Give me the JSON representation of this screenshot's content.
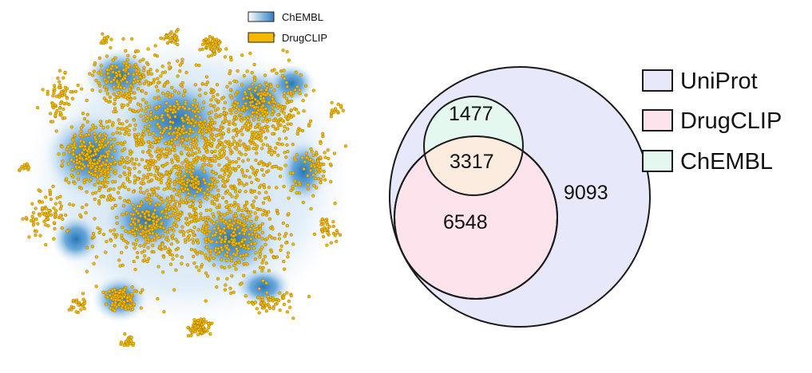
{
  "tsne": {
    "legend": [
      {
        "label": "ChEMBL",
        "color": "#2f7fc1",
        "kind": "gradient"
      },
      {
        "label": "DrugCLIP",
        "color": "#f3b800",
        "kind": "solid"
      }
    ]
  },
  "venn": {
    "regions": {
      "chembl_only": "1477",
      "overlap": "3317",
      "drugclip_only": "6548",
      "uniprot_only": "9093"
    },
    "legend": [
      {
        "label": "UniProt",
        "color": "#e8e8fb"
      },
      {
        "label": "DrugCLIP",
        "color": "#fde4ec"
      },
      {
        "label": "ChEMBL",
        "color": "#e4f8ef"
      }
    ]
  }
}
